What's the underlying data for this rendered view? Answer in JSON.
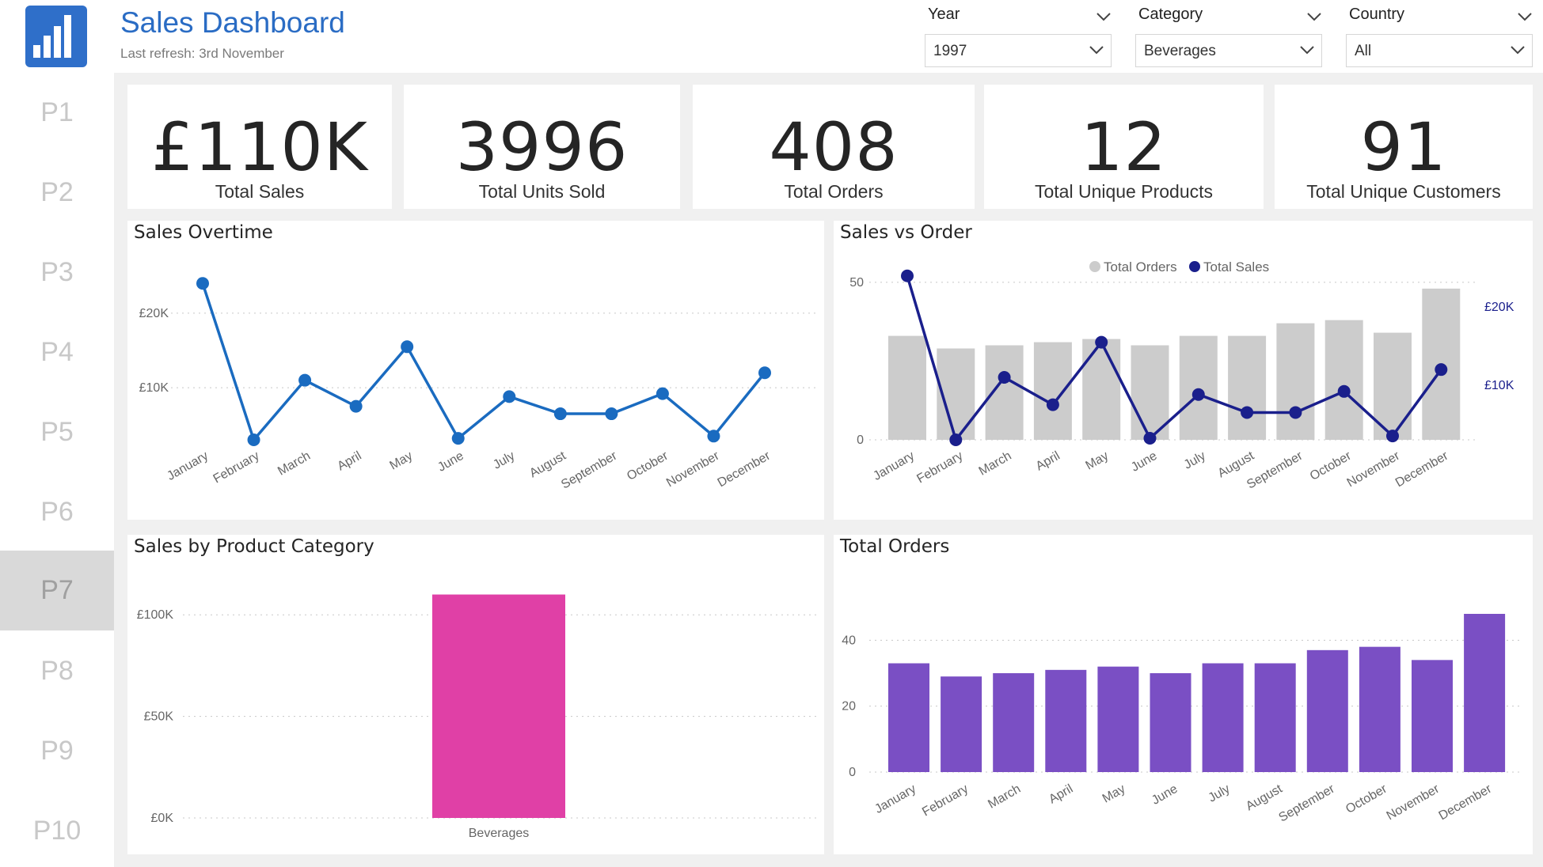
{
  "header": {
    "title": "Sales Dashboard",
    "subtitle": "Last refresh: 3rd November",
    "logo_icon": "bar-chart-icon"
  },
  "slicers": [
    {
      "label": "Year",
      "value": "1997"
    },
    {
      "label": "Category",
      "value": "Beverages"
    },
    {
      "label": "Country",
      "value": "All"
    }
  ],
  "nav": {
    "items": [
      "P1",
      "P2",
      "P3",
      "P4",
      "P5",
      "P6",
      "P7",
      "P8",
      "P9",
      "P10"
    ],
    "active": "P7"
  },
  "kpis": [
    {
      "value": "£110K",
      "label": "Total Sales"
    },
    {
      "value": "3996",
      "label": "Total Units Sold"
    },
    {
      "value": "408",
      "label": "Total Orders"
    },
    {
      "value": "12",
      "label": "Total Unique Products"
    },
    {
      "value": "91",
      "label": "Total Unique Customers"
    }
  ],
  "colors": {
    "line_blue": "#1a6bc0",
    "navy": "#1a1f8c",
    "gray_bar": "#cccccc",
    "pink": "#e040a6",
    "purple": "#7a4fc4"
  },
  "chart_data": [
    {
      "type": "line",
      "title": "Sales Overtime",
      "categories": [
        "January",
        "February",
        "March",
        "April",
        "May",
        "June",
        "July",
        "August",
        "September",
        "October",
        "November",
        "December"
      ],
      "values": [
        24000,
        3000,
        11000,
        7500,
        15500,
        3200,
        8800,
        6500,
        6500,
        9200,
        3500,
        12000
      ],
      "ylim": [
        3000,
        27000
      ],
      "yticks": [
        {
          "v": 10000,
          "label": "£10K"
        },
        {
          "v": 20000,
          "label": "£20K"
        }
      ],
      "grid": true
    },
    {
      "type": "bar",
      "title": "Sales vs Order",
      "legend": [
        "Total Orders",
        "Total Sales"
      ],
      "legend_position": "top-center",
      "categories": [
        "January",
        "February",
        "March",
        "April",
        "May",
        "June",
        "July",
        "August",
        "September",
        "October",
        "November",
        "December"
      ],
      "series": [
        {
          "name": "Total Orders",
          "type": "bar",
          "axis": "left",
          "values": [
            33,
            29,
            30,
            31,
            32,
            30,
            33,
            33,
            37,
            38,
            34,
            48
          ]
        },
        {
          "name": "Total Sales",
          "type": "line",
          "axis": "right",
          "values": [
            24000,
            3000,
            11000,
            7500,
            15500,
            3200,
            8800,
            6500,
            6500,
            9200,
            3500,
            12000
          ]
        }
      ],
      "ylim_left": [
        0,
        57
      ],
      "yticks_left": [
        {
          "v": 0,
          "label": "0"
        },
        {
          "v": 50,
          "label": "50"
        }
      ],
      "ylim_right": [
        3000,
        26000
      ],
      "yticks_right": [
        {
          "v": 10000,
          "label": "£10K"
        },
        {
          "v": 20000,
          "label": "£20K"
        }
      ]
    },
    {
      "type": "bar",
      "title": "Sales by Product Category",
      "categories": [
        "Beverages"
      ],
      "values": [
        110000
      ],
      "ylim": [
        0,
        118000
      ],
      "yticks": [
        {
          "v": 0,
          "label": "£0K"
        },
        {
          "v": 50000,
          "label": "£50K"
        },
        {
          "v": 100000,
          "label": "£100K"
        }
      ],
      "grid": true
    },
    {
      "type": "bar",
      "title": "Total Orders",
      "categories": [
        "January",
        "February",
        "March",
        "April",
        "May",
        "June",
        "July",
        "August",
        "September",
        "October",
        "November",
        "December"
      ],
      "values": [
        33,
        29,
        30,
        31,
        32,
        30,
        33,
        33,
        37,
        38,
        34,
        48
      ],
      "ylim": [
        0,
        48
      ],
      "yticks": [
        {
          "v": 0,
          "label": "0"
        },
        {
          "v": 20,
          "label": "20"
        },
        {
          "v": 40,
          "label": "40"
        }
      ],
      "grid": true
    }
  ]
}
